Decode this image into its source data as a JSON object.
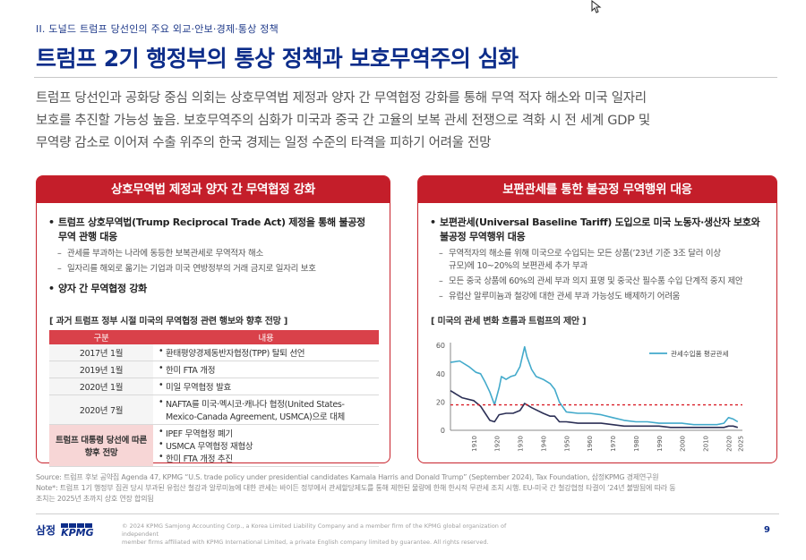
{
  "header": {
    "section": "II. 도널드 트럼프 당선인의 주요 외교·안보·경제·통상 정책",
    "title": "트럼프 2기 행정부의 통상 정책과 보호무역주의 심화"
  },
  "summary": [
    "트럼프 당선인과 공화당 중심 의회는 상호무역법 제정과 양자 간 무역협정 강화를 통해 무역 적자 해소와 미국 일자리",
    "보호를 추진할 가능성 높음. 보호무역주의 심화가 미국과 중국 간 고율의 보복 관세 전쟁으로 격화 시 전 세계 GDP 및",
    "무역량 감소로 이어져 수출 위주의 한국 경제는 일정 수준의 타격을 피하기 어려울 전망"
  ],
  "left_panel": {
    "title": "상호무역법 제정과 양자 간 무역협정 강화",
    "bullet1": [
      "트럼프 상호무역법(Trump Reciprocal Trade Act) 제정을 통해 불공정",
      "무역 관행 대응"
    ],
    "bullet1_subs": [
      "관세를 부과하는 나라에 동등한 보복관세로 무역적자 해소",
      "일자리를 해외로 옮기는 기업과 미국 연방정부의 거래 금지로 일자리 보호"
    ],
    "bullet2": "양자 간 무역협정 강화",
    "table_title": "[ 과거 트럼프 정부 시절 미국의 무역협정 관련 행보와 향후 전망 ]",
    "table_headers": [
      "구분",
      "내용"
    ],
    "rows": [
      {
        "year": "2017년 1월",
        "lines": [
          "환태평양경제동반자협정(TPP) 탈퇴 선언"
        ]
      },
      {
        "year": "2019년 1월",
        "lines": [
          "한미 FTA 개정"
        ]
      },
      {
        "year": "2020년 1월",
        "lines": [
          "미일 무역협정 발효"
        ]
      },
      {
        "year": "2020년 7월",
        "lines": [
          "NAFTA를 미국·멕시코·캐나다 협정(United States-",
          "Mexico-Canada Agreement, USMCA)으로 대체"
        ]
      }
    ],
    "outlook": {
      "label": [
        "트럼프 대통령 당선에 따른",
        "향후 전망"
      ],
      "lines": [
        "IPEF 무역협정 폐기",
        "USMCA 무역협정 재협상",
        "한미 FTA 개정 추진"
      ]
    }
  },
  "right_panel": {
    "title": "보편관세를 통한 불공정 무역행위 대응",
    "bullet1": [
      "보편관세(Universal Baseline Tariff) 도입으로 미국 노동자·생산자 보호와",
      "불공정 무역행위 대응"
    ],
    "subs": [
      [
        "무역적자의 해소를 위해 미국으로 수입되는 모든 상품(’23년 기준 3조 달러 이상",
        "규모)에 10~20%의 보편관세 추가 부과"
      ],
      [
        "모든 중국 상품에 60%의 관세 부과 의지 표명 및 중국산 필수품 수입 단계적 중지 제안"
      ],
      [
        "유럽산 알루미늄과 철강에 대한 관세 부과 가능성도 배제하기 어려움"
      ]
    ],
    "chart_title": "[ 미국의 관세 변화 흐름과 트럼프의 제안 ]"
  },
  "chart_data": {
    "type": "line",
    "legend": "관세수입품 평균관세",
    "legend_position": "top-right",
    "x_ticks": [
      "1910",
      "1920",
      "1930",
      "1940",
      "1950",
      "1960",
      "1970",
      "1980",
      "1990",
      "2000",
      "2010",
      "2020",
      "2025"
    ],
    "y_ticks": [
      0,
      20,
      40,
      60
    ],
    "ylim": [
      0,
      62
    ],
    "xlim": [
      1900,
      2026
    ],
    "grid": false,
    "series": [
      {
        "name": "관세수입품 평균관세",
        "color": "#43aacb",
        "x": [
          1900,
          1904,
          1908,
          1911,
          1913,
          1915,
          1917,
          1919,
          1921,
          1922,
          1924,
          1926,
          1928,
          1930,
          1932,
          1933,
          1935,
          1937,
          1940,
          1943,
          1945,
          1947,
          1950,
          1955,
          1960,
          1965,
          1970,
          1975,
          1980,
          1985,
          1990,
          1995,
          2000,
          2005,
          2010,
          2015,
          2018,
          2020,
          2022,
          2024
        ],
        "y": [
          48,
          49,
          45,
          41,
          40,
          34,
          27,
          18,
          30,
          38,
          36,
          38,
          39,
          45,
          59,
          52,
          43,
          38,
          36,
          33,
          29,
          20,
          13,
          12,
          12,
          11,
          9,
          7,
          6,
          6,
          5,
          5,
          5,
          4,
          4,
          4,
          5,
          9,
          8,
          6
        ]
      },
      {
        "name": "",
        "color": "#2b2f55",
        "x": [
          1900,
          1905,
          1910,
          1913,
          1915,
          1917,
          1919,
          1921,
          1924,
          1927,
          1930,
          1932,
          1935,
          1940,
          1943,
          1945,
          1947,
          1950,
          1955,
          1960,
          1965,
          1970,
          1975,
          1980,
          1985,
          1990,
          1995,
          2000,
          2005,
          2010,
          2015,
          2018,
          2020,
          2022,
          2024
        ],
        "y": [
          28,
          23,
          21,
          17,
          12,
          7,
          6,
          11,
          12,
          12,
          14,
          19,
          16,
          12,
          10,
          10,
          6,
          6,
          5,
          5,
          5,
          4,
          3,
          3,
          3,
          3,
          2,
          2,
          2,
          2,
          2,
          2,
          3,
          3,
          2
        ]
      },
      {
        "name": "",
        "type": "reference",
        "style": "dashed",
        "color": "#d9202a",
        "y_constant": 18,
        "x_range": [
          1900,
          2026
        ]
      }
    ]
  },
  "footer": {
    "source": "Source: 트럼프 후보 공약집 Agenda 47, KPMG “U.S. trade policy under presidential candidates Kamala Harris and Donald Trump” (September 2024), Tax Foundation, 삼정KPMG 경제연구원",
    "note": [
      "Note*: 트럼프 1기 행정부 집권 당시 부과된 유럽산 철강과 알루미늄에 대한 관세는 바이든 정부에서 관세할당제도를 통해 제한된 물량에 한해 한시적 무관세 조치 시행. EU-미국 간 철강협정 타결이 ’24년 불발됨에 따라 동",
      "조치는 2025년 초까지 상호 연장 합의됨"
    ],
    "brand_ko": "삼정",
    "brand_en": "KPMG",
    "copyright": [
      "© 2024 KPMG Samjong Accounting Corp., a Korea Limited Liability Company and a member firm of the KPMG global organization of independent",
      "member firms affiliated with KPMG International Limited, a private English company limited by guarantee. All rights reserved."
    ],
    "page": "9"
  }
}
